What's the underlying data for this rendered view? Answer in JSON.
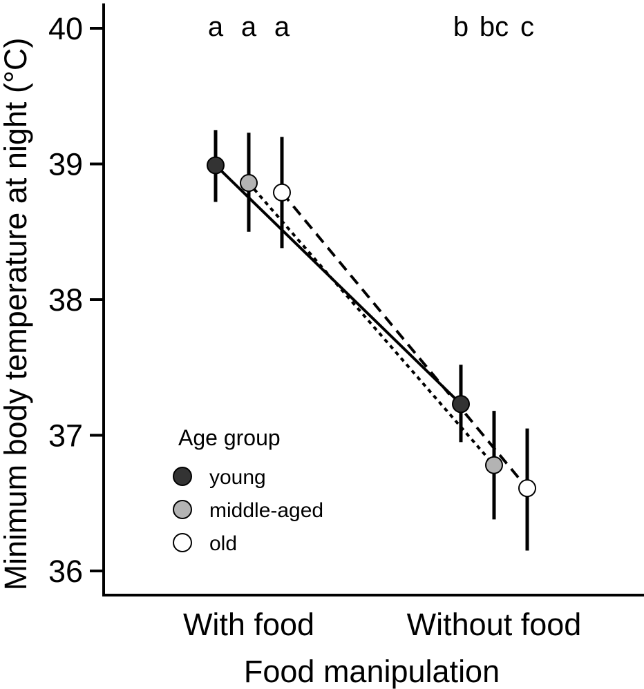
{
  "chart_data": {
    "type": "scatter",
    "title": "",
    "xlabel": "Food manipulation",
    "ylabel": "Minimum body temperature at night (°C)",
    "categories": [
      "With food",
      "Without food"
    ],
    "ylim": [
      35.92,
      40.2
    ],
    "yticks": [
      36,
      37,
      38,
      39,
      40
    ],
    "legend": {
      "title": "Age group",
      "position": "bottom-left",
      "entries": [
        "young",
        "middle-aged",
        "old"
      ]
    },
    "series": [
      {
        "name": "young",
        "color": "#333333",
        "line_style": "solid",
        "values": [
          38.99,
          37.23
        ],
        "error_low": [
          38.72,
          36.95
        ],
        "error_high": [
          39.25,
          37.52
        ],
        "significance": [
          "a",
          "b"
        ]
      },
      {
        "name": "middle-aged",
        "color": "#b3b3b3",
        "line_style": "dotted",
        "values": [
          38.86,
          36.78
        ],
        "error_low": [
          38.5,
          36.38
        ],
        "error_high": [
          39.23,
          37.18
        ],
        "significance": [
          "a",
          "bc"
        ]
      },
      {
        "name": "old",
        "color": "#ffffff",
        "line_style": "dashed",
        "values": [
          38.79,
          36.61
        ],
        "error_low": [
          38.38,
          36.15
        ],
        "error_high": [
          39.2,
          37.05
        ],
        "significance": [
          "a",
          "c"
        ]
      }
    ]
  }
}
